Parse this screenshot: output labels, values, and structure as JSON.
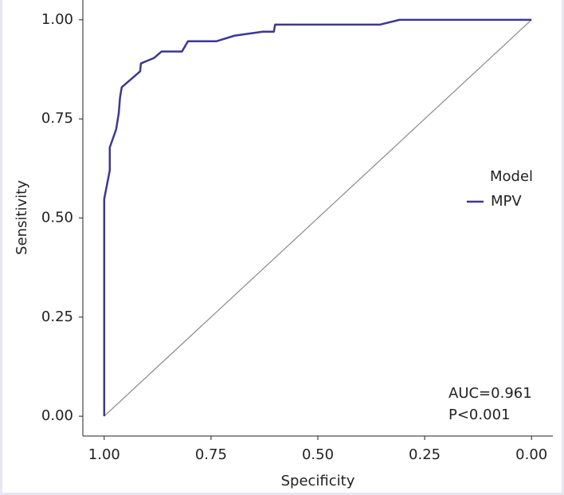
{
  "chart_data": {
    "type": "line",
    "x_label": "Specificity",
    "y_label": "Sensitivity",
    "x": [
      1,
      1,
      0.987,
      0.987,
      0.972,
      0.966,
      0.963,
      0.959,
      0.916,
      0.914,
      0.883,
      0.866,
      0.818,
      0.804,
      0.737,
      0.695,
      0.629,
      0.603,
      0.6,
      0.354,
      0.309,
      0
    ],
    "series": [
      {
        "name": "MPV",
        "color": "#3c3793",
        "values": [
          0,
          0.548,
          0.62,
          0.678,
          0.724,
          0.764,
          0.804,
          0.83,
          0.87,
          0.89,
          0.904,
          0.92,
          0.92,
          0.946,
          0.946,
          0.96,
          0.97,
          0.97,
          0.988,
          0.988,
          1,
          1
        ]
      }
    ],
    "legend_title": "Model",
    "annotations": [
      "AUC=0.961",
      "P<0.001"
    ],
    "xlim": [
      1.05,
      -0.05
    ],
    "ylim": [
      -0.05,
      1.05
    ],
    "xticks": [
      {
        "value": 1,
        "label": "1.00"
      },
      {
        "value": 0.75,
        "label": "0.75"
      },
      {
        "value": 0.5,
        "label": "0.50"
      },
      {
        "value": 0.25,
        "label": "0.25"
      },
      {
        "value": 0,
        "label": "0.00"
      }
    ],
    "yticks": [
      {
        "value": 0,
        "label": "0.00"
      },
      {
        "value": 0.25,
        "label": "0.25"
      },
      {
        "value": 0.5,
        "label": "0.50"
      },
      {
        "value": 0.75,
        "label": "0.75"
      },
      {
        "value": 1,
        "label": "1.00"
      }
    ]
  }
}
